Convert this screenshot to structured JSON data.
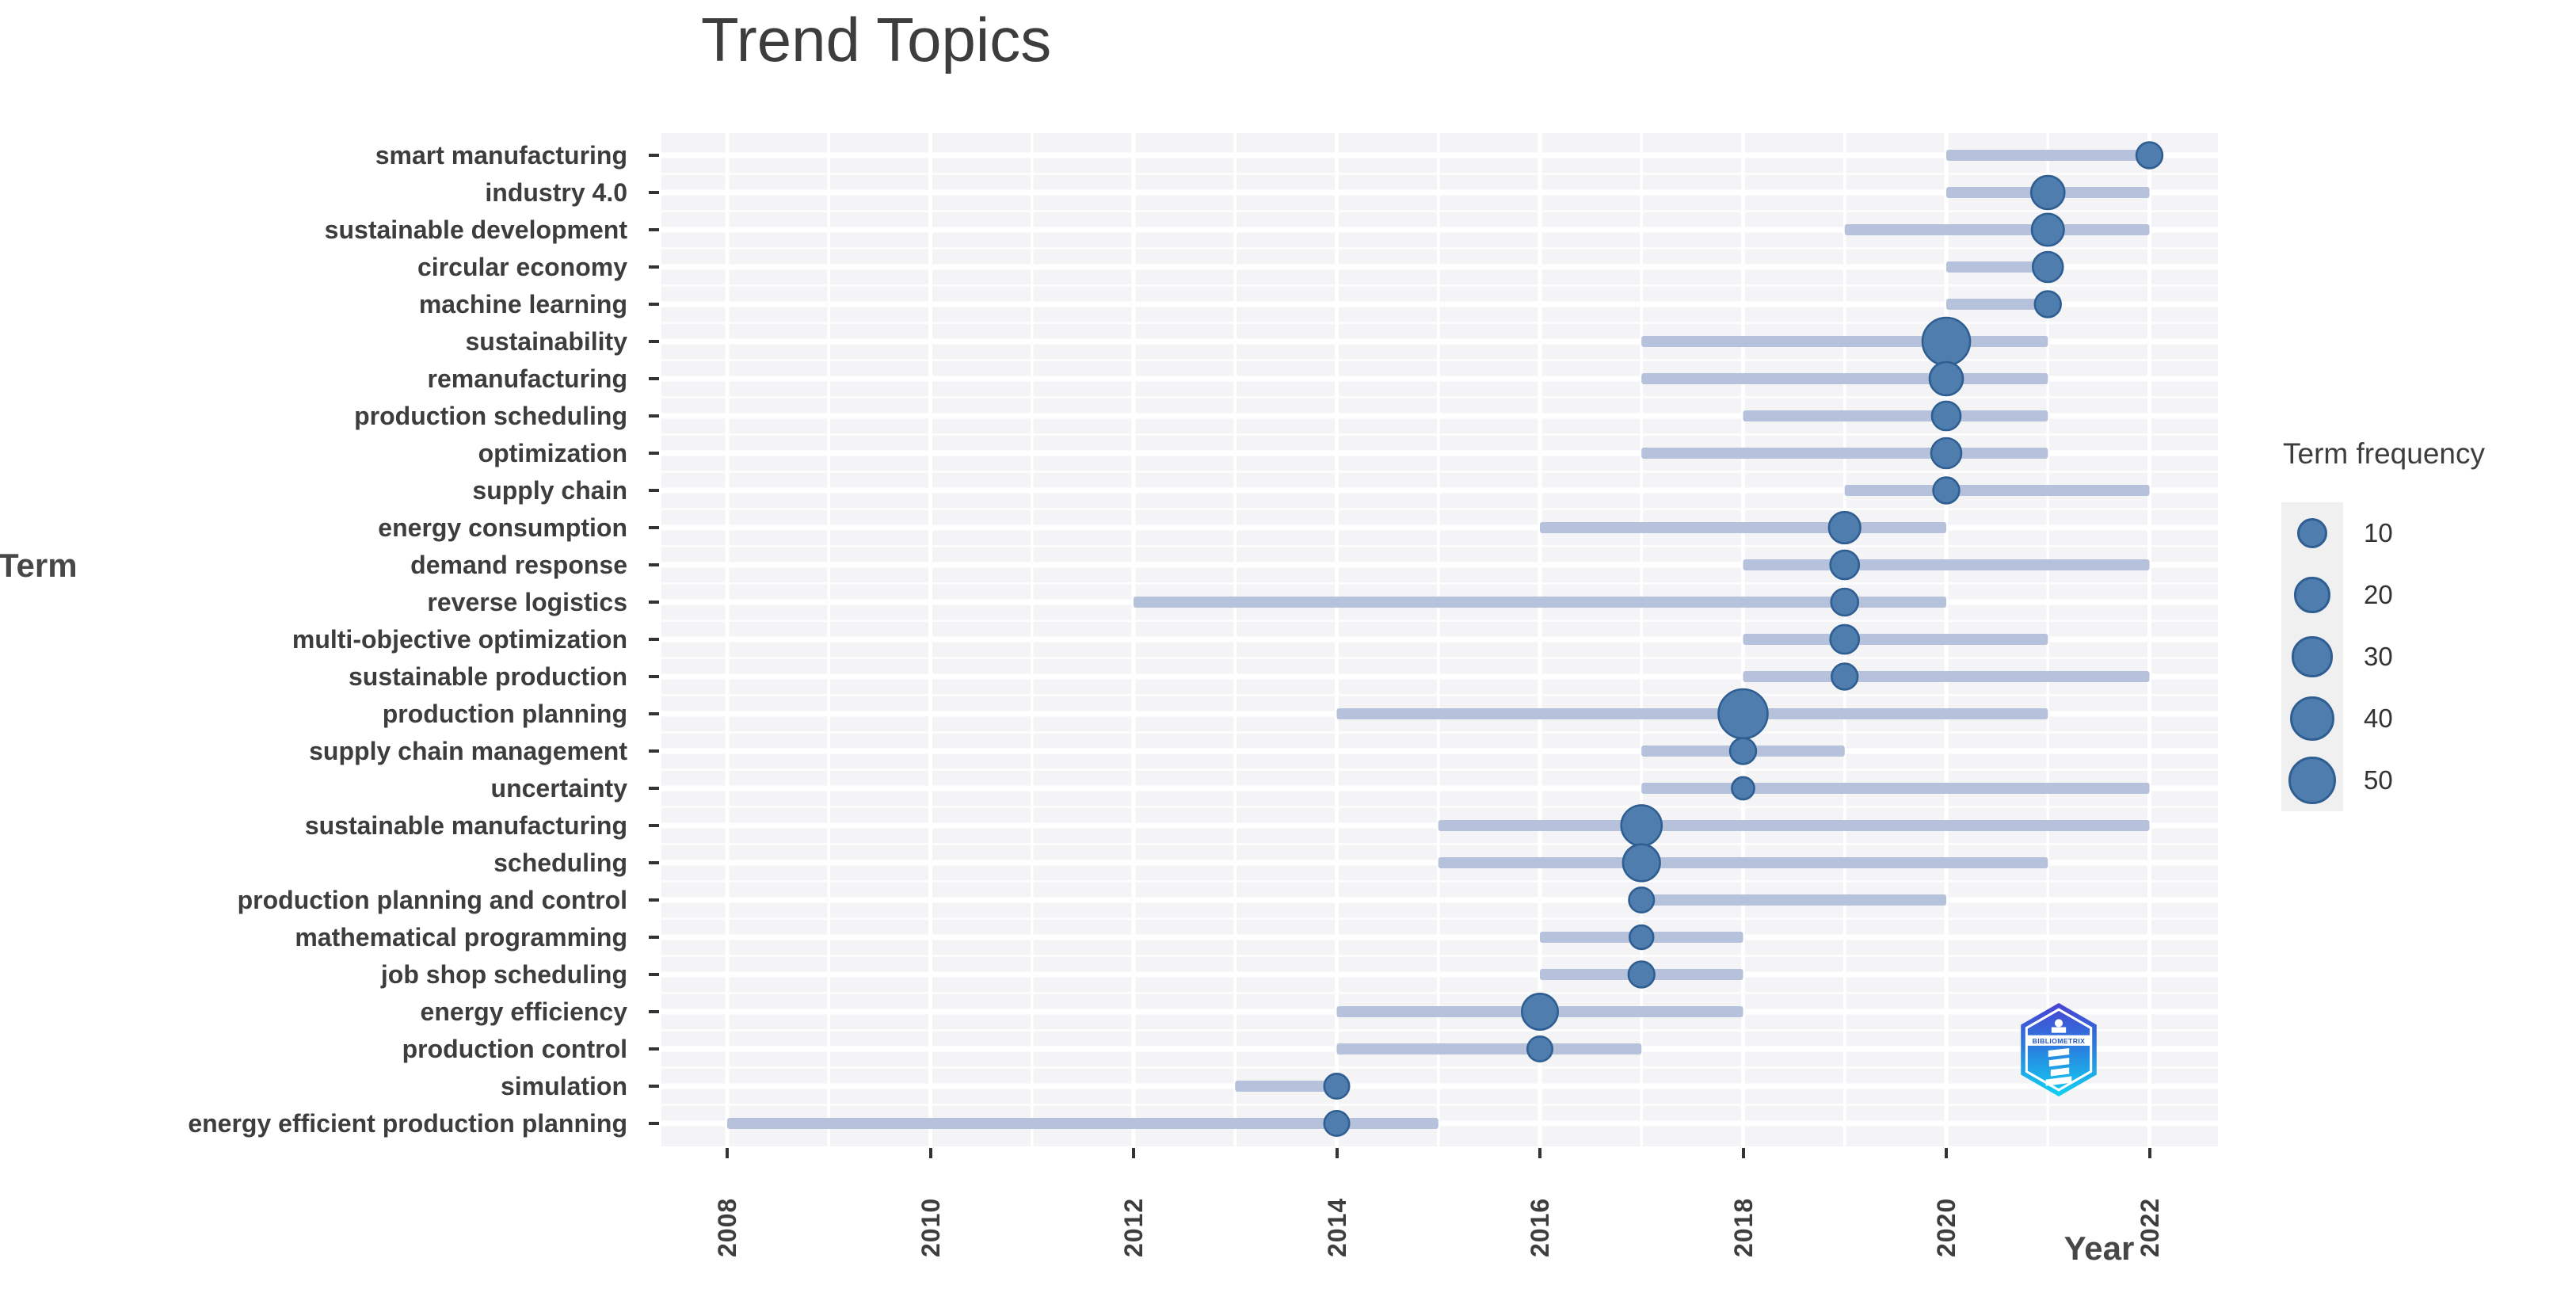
{
  "page": {
    "title": "Trend Topics"
  },
  "axes": {
    "x_title": "Year",
    "y_title": "Term",
    "x_tick_years": [
      2008,
      2010,
      2012,
      2014,
      2016,
      2018,
      2020,
      2022
    ]
  },
  "legend": {
    "title": "Term frequency",
    "sizes": [
      10,
      20,
      30,
      40,
      50
    ]
  },
  "logo": {
    "text": "BIBLIOMETRIX"
  },
  "colors": {
    "bubble_fill": "#4f7dad",
    "bubble_stroke": "#2f5f92",
    "segment": "#b6c1db",
    "panel_bg": "#f4f4f6",
    "grid": "#ffffff",
    "tick": "#333333",
    "text": "#3d3d3d"
  },
  "chart_data": {
    "type": "bubble-timeline",
    "title": "Trend Topics",
    "xlabel": "Year",
    "ylabel": "Term",
    "x_range": [
      2008,
      2022
    ],
    "x_tick_step": 2,
    "grid": true,
    "legend_position": "right",
    "legend_title": "Term frequency",
    "legend_sizes": [
      10,
      20,
      30,
      40,
      50
    ],
    "series": [
      {
        "term": "smart manufacturing",
        "freq": 5,
        "peak_year": 2022,
        "year_start": 2020,
        "year_end": 2022
      },
      {
        "term": "industry 4.0",
        "freq": 15,
        "peak_year": 2021,
        "year_start": 2020,
        "year_end": 2022
      },
      {
        "term": "sustainable development",
        "freq": 13,
        "peak_year": 2021,
        "year_start": 2019,
        "year_end": 2022
      },
      {
        "term": "circular economy",
        "freq": 10,
        "peak_year": 2021,
        "year_start": 2020,
        "year_end": 2021
      },
      {
        "term": "machine learning",
        "freq": 5,
        "peak_year": 2021,
        "year_start": 2020,
        "year_end": 2021
      },
      {
        "term": "sustainability",
        "freq": 50,
        "peak_year": 2020,
        "year_start": 2017,
        "year_end": 2021
      },
      {
        "term": "remanufacturing",
        "freq": 15,
        "peak_year": 2020,
        "year_start": 2017,
        "year_end": 2021
      },
      {
        "term": "production scheduling",
        "freq": 8,
        "peak_year": 2020,
        "year_start": 2018,
        "year_end": 2021
      },
      {
        "term": "optimization",
        "freq": 10,
        "peak_year": 2020,
        "year_start": 2017,
        "year_end": 2021
      },
      {
        "term": "supply chain",
        "freq": 5,
        "peak_year": 2020,
        "year_start": 2019,
        "year_end": 2022
      },
      {
        "term": "energy consumption",
        "freq": 12,
        "peak_year": 2019,
        "year_start": 2016,
        "year_end": 2020
      },
      {
        "term": "demand response",
        "freq": 8,
        "peak_year": 2019,
        "year_start": 2018,
        "year_end": 2022
      },
      {
        "term": "reverse logistics",
        "freq": 6,
        "peak_year": 2019,
        "year_start": 2012,
        "year_end": 2020
      },
      {
        "term": "multi-objective optimization",
        "freq": 8,
        "peak_year": 2019,
        "year_start": 2018,
        "year_end": 2021
      },
      {
        "term": "sustainable production",
        "freq": 5,
        "peak_year": 2019,
        "year_start": 2018,
        "year_end": 2022
      },
      {
        "term": "production planning",
        "freq": 55,
        "peak_year": 2018,
        "year_start": 2014,
        "year_end": 2021
      },
      {
        "term": "supply chain management",
        "freq": 5,
        "peak_year": 2018,
        "year_start": 2017,
        "year_end": 2019
      },
      {
        "term": "uncertainty",
        "freq": 2,
        "peak_year": 2018,
        "year_start": 2017,
        "year_end": 2022
      },
      {
        "term": "sustainable manufacturing",
        "freq": 30,
        "peak_year": 2017,
        "year_start": 2015,
        "year_end": 2022
      },
      {
        "term": "scheduling",
        "freq": 22,
        "peak_year": 2017,
        "year_start": 2015,
        "year_end": 2021
      },
      {
        "term": "production planning and control",
        "freq": 4,
        "peak_year": 2017,
        "year_start": 2017,
        "year_end": 2020
      },
      {
        "term": "mathematical programming",
        "freq": 3,
        "peak_year": 2017,
        "year_start": 2016,
        "year_end": 2018
      },
      {
        "term": "job shop scheduling",
        "freq": 5,
        "peak_year": 2017,
        "year_start": 2016,
        "year_end": 2018
      },
      {
        "term": "energy efficiency",
        "freq": 20,
        "peak_year": 2016,
        "year_start": 2014,
        "year_end": 2018
      },
      {
        "term": "production control",
        "freq": 4,
        "peak_year": 2016,
        "year_start": 2014,
        "year_end": 2017
      },
      {
        "term": "simulation",
        "freq": 4,
        "peak_year": 2014,
        "year_start": 2013,
        "year_end": 2014
      },
      {
        "term": "energy efficient production planning",
        "freq": 4,
        "peak_year": 2014,
        "year_start": 2008,
        "year_end": 2015
      }
    ]
  }
}
